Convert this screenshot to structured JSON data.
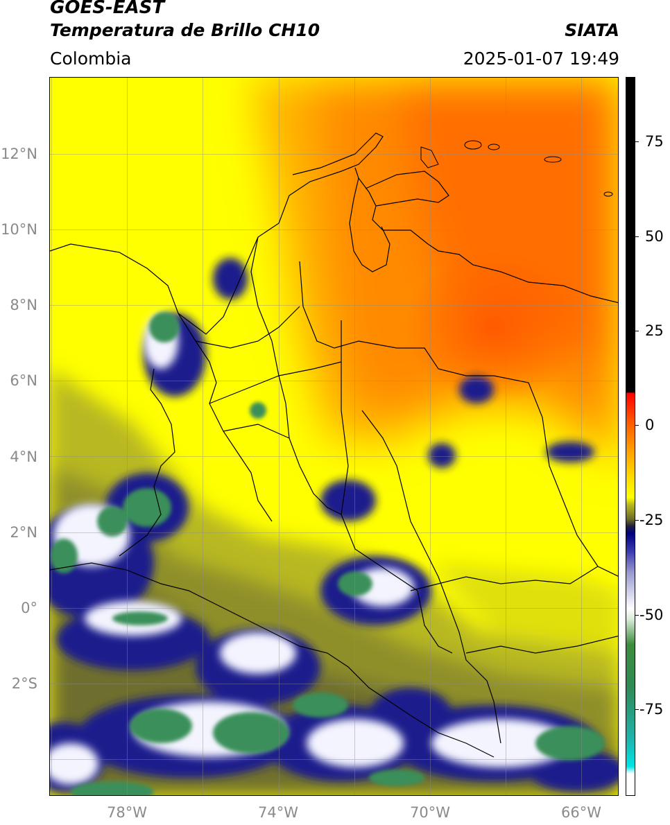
{
  "header": {
    "satellite": "GOES-EAST",
    "product": "Temperatura de Brillo CH10",
    "region": "Colombia",
    "source": "SIATA",
    "datetime": "2025-01-07 19:49"
  },
  "map": {
    "lat_ticks": [
      "12°N",
      "10°N",
      "8°N",
      "6°N",
      "4°N",
      "2°N",
      "0°",
      "2°S"
    ],
    "lon_ticks": [
      "78°W",
      "74°W",
      "70°W",
      "66°W"
    ],
    "extent_lon": [
      -80,
      -65
    ],
    "extent_lat": [
      -5,
      14
    ]
  },
  "colorbar": {
    "ticks": [
      "75",
      "50",
      "25",
      "0",
      "-25",
      "-50",
      "-75"
    ],
    "range": [
      -95,
      95
    ],
    "colors": {
      "warm_top": "#000000",
      "hot": "#ff0000",
      "orange": "#ff8000",
      "yellow": "#ffff00",
      "olive": "#808020",
      "navy": "#000080",
      "white": "#ffffff",
      "green": "#2e8b57",
      "cyan": "#00e5e5"
    }
  }
}
